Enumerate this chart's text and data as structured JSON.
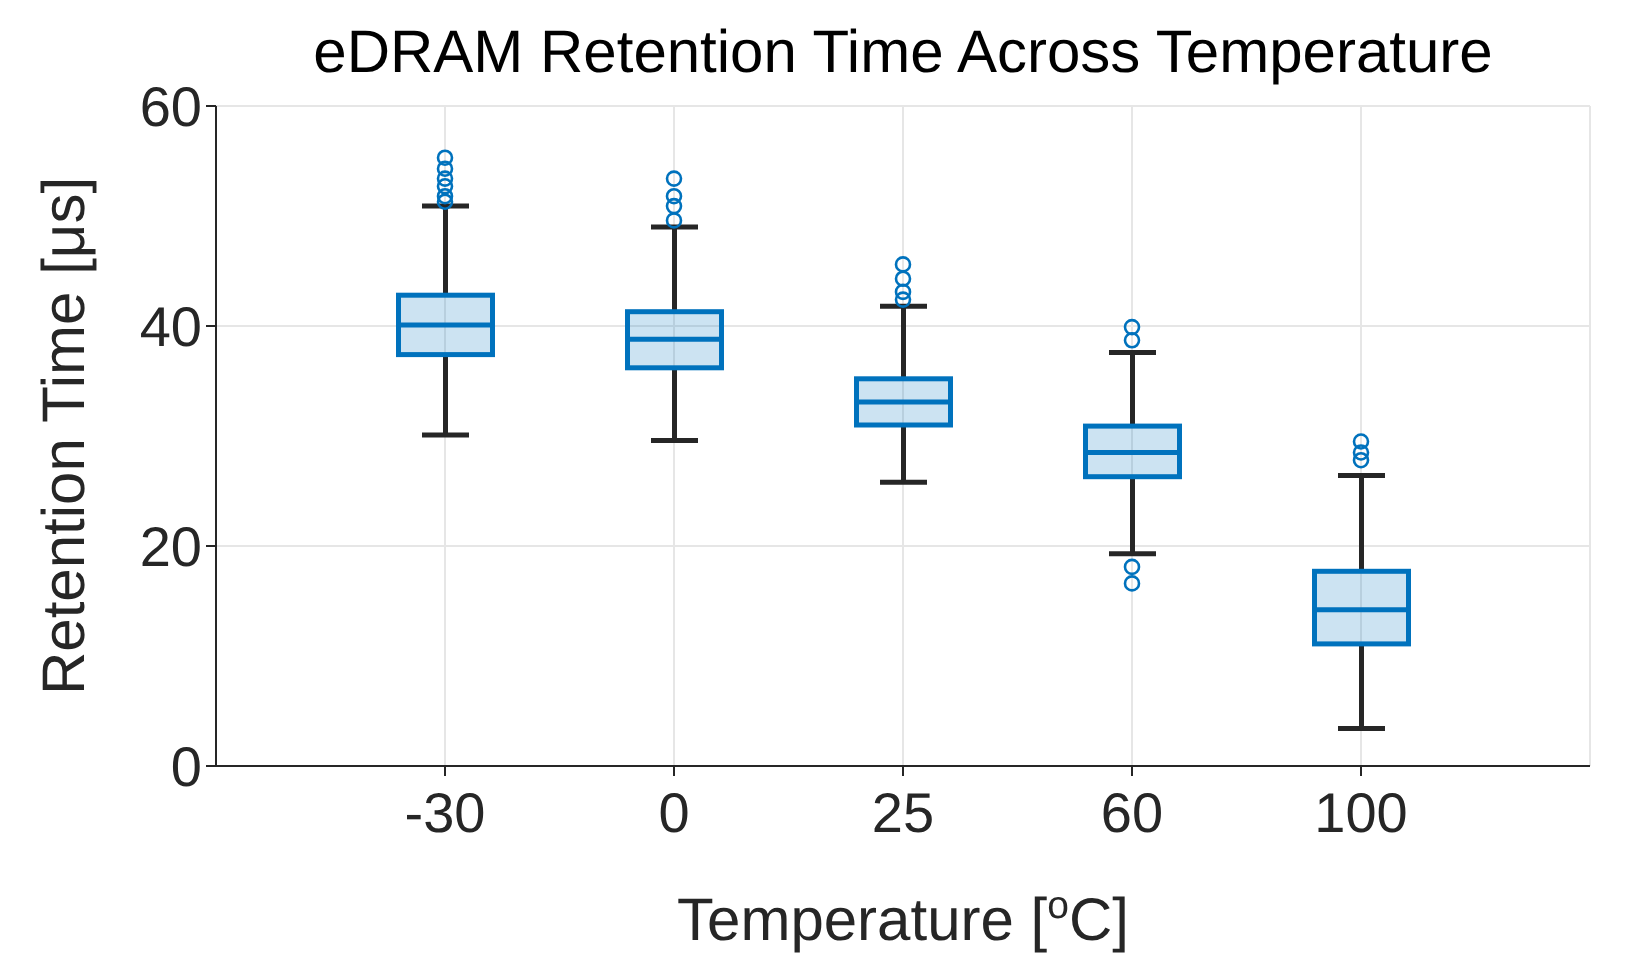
{
  "chart_data": {
    "type": "box",
    "title": "eDRAM Retention Time Across Temperature",
    "xlabel": "Temperature [$^{o}$C]",
    "ylabel": "Retention Time [μs]",
    "categories": [
      "-30",
      "0",
      "25",
      "60",
      "100"
    ],
    "color": "#0072bd",
    "boxes": [
      {
        "low": 30.1,
        "q1": 37.4,
        "median": 40.1,
        "q3": 42.8,
        "high": 50.9,
        "outliers": [
          51.3,
          51.8,
          52.7,
          53.4,
          54.3,
          55.3
        ]
      },
      {
        "low": 29.6,
        "q1": 36.2,
        "median": 38.8,
        "q3": 41.3,
        "high": 49.0,
        "outliers": [
          49.6,
          50.9,
          51.8,
          53.4
        ]
      },
      {
        "low": 25.8,
        "q1": 31.0,
        "median": 33.1,
        "q3": 35.2,
        "high": 41.8,
        "outliers": [
          42.4,
          43.1,
          44.3,
          45.6
        ]
      },
      {
        "low": 19.3,
        "q1": 26.3,
        "median": 28.5,
        "q3": 30.9,
        "high": 37.6,
        "outliers": [
          16.6,
          18.1,
          38.7,
          39.9
        ]
      },
      {
        "low": 3.4,
        "q1": 11.1,
        "median": 14.2,
        "q3": 17.7,
        "high": 26.4,
        "outliers": [
          27.8,
          28.5,
          29.5
        ]
      }
    ],
    "ylim": [
      0,
      60
    ],
    "yticks": [
      0,
      20,
      40,
      60
    ],
    "grid": true
  }
}
